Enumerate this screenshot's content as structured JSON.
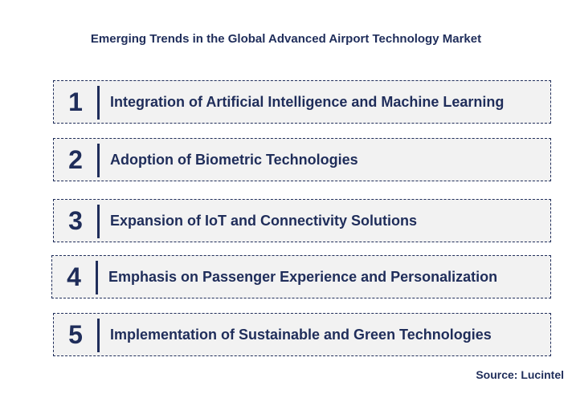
{
  "title": "Emerging Trends in the Global Advanced Airport Technology Market",
  "items": [
    {
      "number": "1",
      "label": "Integration of Artificial Intelligence and Machine Learning"
    },
    {
      "number": "2",
      "label": "Adoption of Biometric Technologies"
    },
    {
      "number": "3",
      "label": "Expansion of IoT and Connectivity Solutions"
    },
    {
      "number": "4",
      "label": "Emphasis on Passenger Experience and Personalization"
    },
    {
      "number": "5",
      "label": "Implementation of Sustainable and Green Technologies"
    }
  ],
  "source": "Source: Lucintel"
}
